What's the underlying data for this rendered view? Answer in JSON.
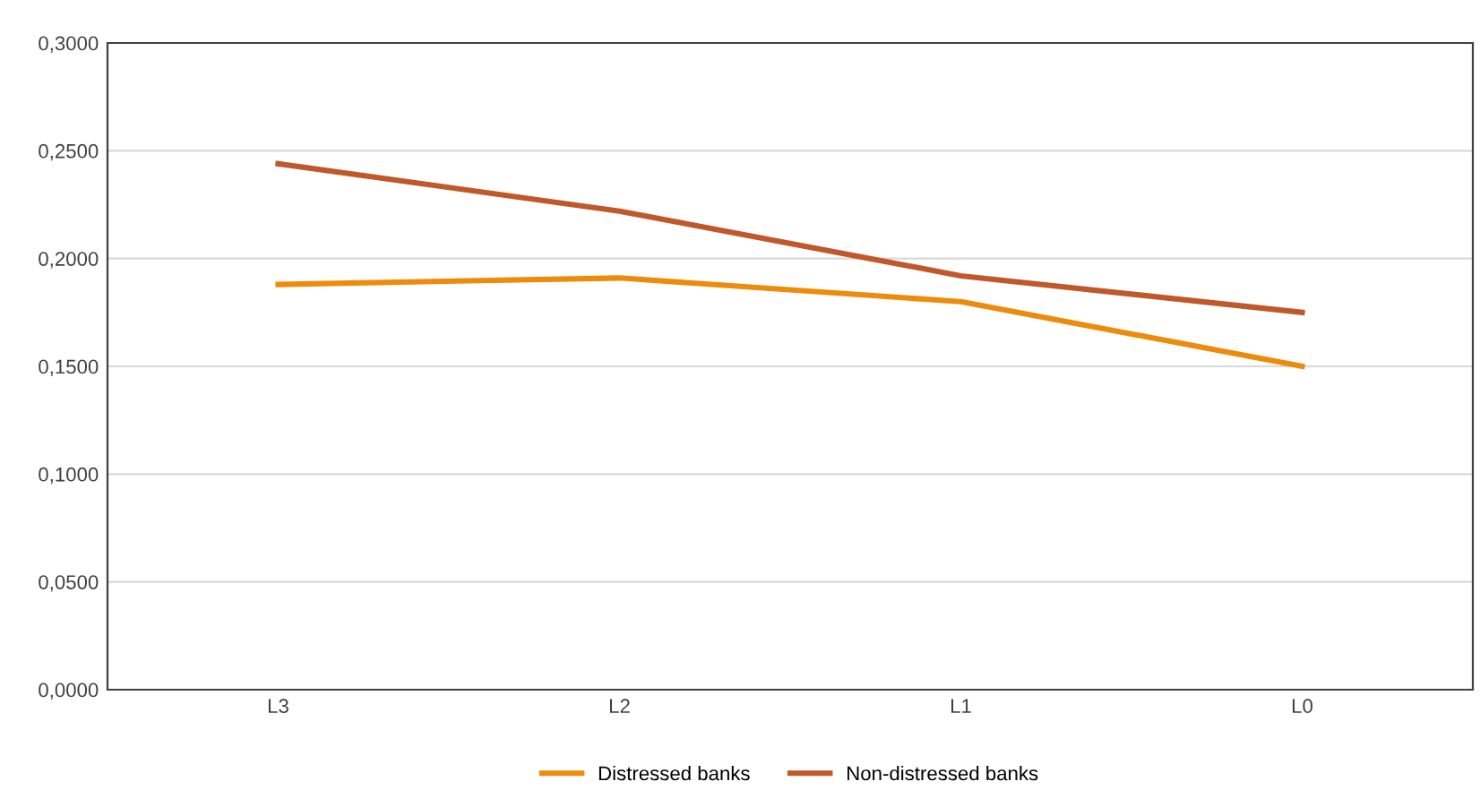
{
  "chart_data": {
    "type": "line",
    "categories": [
      "L3",
      "L2",
      "L1",
      "L0"
    ],
    "series": [
      {
        "name": "Distressed banks",
        "color": "#ed8c0c",
        "values": [
          0.188,
          0.191,
          0.18,
          0.15
        ]
      },
      {
        "name": "Non-distressed banks",
        "color": "#c0582a",
        "values": [
          0.244,
          0.222,
          0.192,
          0.175
        ]
      }
    ],
    "ylim": [
      0,
      0.3
    ],
    "yticks": [
      {
        "value": 0,
        "label": "0,0000"
      },
      {
        "value": 0.05,
        "label": "0,0500"
      },
      {
        "value": 0.1,
        "label": "0,1000"
      },
      {
        "value": 0.15,
        "label": "0,1500"
      },
      {
        "value": 0.2,
        "label": "0,2000"
      },
      {
        "value": 0.25,
        "label": "0,2500"
      },
      {
        "value": 0.3,
        "label": "0,3000"
      }
    ],
    "grid": "y",
    "legend": "bottom",
    "marker": "none",
    "line_style": "solid"
  }
}
